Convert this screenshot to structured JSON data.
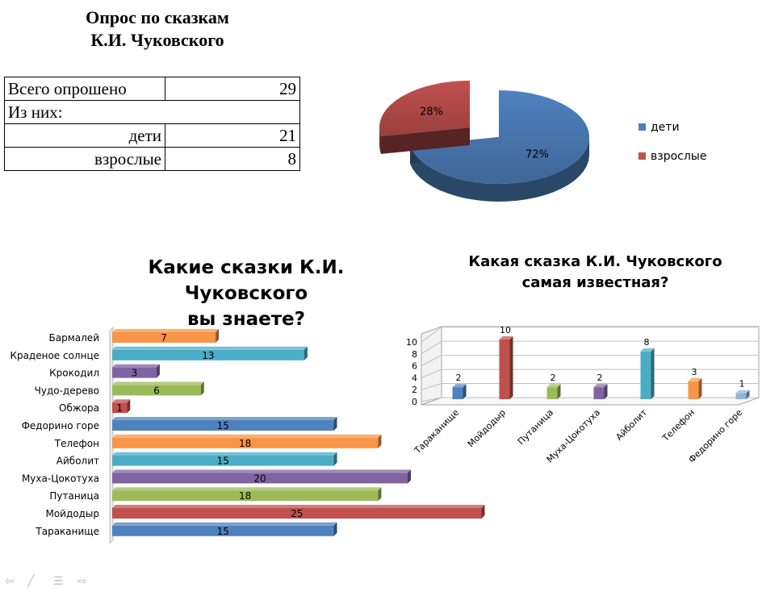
{
  "page": {
    "title_line1": "Опрос по сказкам",
    "title_line2": "К.И. Чуковского"
  },
  "table": {
    "rows": [
      {
        "label": "Всего опрошено",
        "value": "29"
      },
      {
        "label": "Из них:",
        "value": ""
      },
      {
        "label": "дети",
        "value": "21"
      },
      {
        "label": "взрослые",
        "value": "8"
      }
    ]
  },
  "footer_icons": [
    "arrow-left-icon",
    "pen-icon",
    "menu-icon",
    "arrow-right-icon"
  ],
  "chart_data": [
    {
      "type": "pie",
      "title": "",
      "categories": [
        "дети",
        "взрослые"
      ],
      "values": [
        72,
        28
      ],
      "labels": [
        "72%",
        "28%"
      ],
      "colors": [
        "#4f81bd",
        "#c0504d"
      ],
      "legend": "right",
      "style": "3d-exploded"
    },
    {
      "type": "bar",
      "orientation": "horizontal",
      "title_line1": "Какие сказки К.И. Чуковского",
      "title_line2": "вы знаете?",
      "categories": [
        "Бармалей",
        "Краденое солнце",
        "Крокодил",
        "Чудо-дерево",
        "Обжора",
        "Федорино горе",
        "Телефон",
        "Айболит",
        "Муха-Цокотуха",
        "Путаница",
        "Мойдодыр",
        "Тараканище"
      ],
      "values": [
        7,
        13,
        3,
        6,
        1,
        15,
        18,
        15,
        20,
        18,
        25,
        15
      ],
      "colors": [
        "#f79646",
        "#4bacc6",
        "#8064a2",
        "#9bbb59",
        "#c0504d",
        "#4f81bd",
        "#f79646",
        "#4bacc6",
        "#8064a2",
        "#9bbb59",
        "#c0504d",
        "#4f81bd"
      ],
      "data_labels": true,
      "grid": false,
      "legend": "none"
    },
    {
      "type": "bar",
      "orientation": "vertical",
      "title_line1": "Какая сказка К.И. Чуковского",
      "title_line2": "самая известная?",
      "categories": [
        "Тараканище",
        "Мойдодыр",
        "Путаница",
        "Муха-Цокотуха",
        "Айболит",
        "Телефон",
        "Федорино горе"
      ],
      "values": [
        2,
        10,
        2,
        2,
        8,
        3,
        1
      ],
      "colors": [
        "#4f81bd",
        "#c0504d",
        "#9bbb59",
        "#8064a2",
        "#4bacc6",
        "#f79646",
        "#95b3d7"
      ],
      "yticks": [
        0,
        2,
        4,
        6,
        8,
        10
      ],
      "ylim": [
        0,
        10
      ],
      "data_labels": true,
      "grid": true,
      "legend": "none"
    }
  ]
}
